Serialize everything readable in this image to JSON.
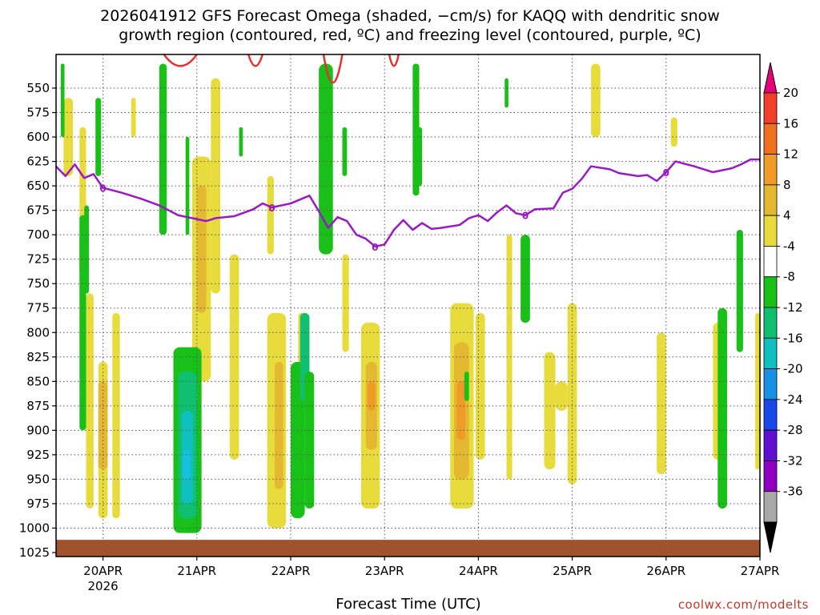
{
  "title": {
    "line1": "2026041912 GFS Forecast Omega (shaded, −cm/s) for KAQQ with dendritic snow",
    "line2": "growth region (contoured, red, ºC) and freezing level (contoured, purple, ºC)"
  },
  "xlabel": "Forecast Time (UTC)",
  "credit": "coolwx.com/modelts",
  "chart_data": {
    "type": "heatmap",
    "y_axis": {
      "ticks": [
        550,
        575,
        600,
        625,
        650,
        675,
        700,
        725,
        750,
        775,
        800,
        825,
        850,
        875,
        900,
        925,
        950,
        975,
        1000,
        1025
      ],
      "range_top": 525,
      "range_bottom": 1035
    },
    "x_axis": {
      "ticks": [
        "20APR",
        "21APR",
        "22APR",
        "23APR",
        "24APR",
        "25APR",
        "26APR",
        "27APR"
      ],
      "sub_label": "2026",
      "range_days": [
        -0.5,
        7.0
      ]
    },
    "colorbar": {
      "labels": [
        20,
        16,
        12,
        8,
        4,
        -4,
        -8,
        -12,
        -16,
        -20,
        -24,
        -28,
        -32,
        -36
      ],
      "colors": [
        "#e8007a",
        "#f0402a",
        "#f07020",
        "#f09a28",
        "#e4b830",
        "#e8dc3c",
        "#ffffff",
        "#18c018",
        "#10c070",
        "#10c0c0",
        "#1890e8",
        "#1848e8",
        "#6010d0",
        "#9000c0",
        "#a8a8a8",
        "#000000"
      ]
    },
    "freezing_level": {
      "label": "0",
      "points": [
        [
          -0.5,
          630
        ],
        [
          -0.4,
          640
        ],
        [
          -0.3,
          628
        ],
        [
          -0.2,
          642
        ],
        [
          -0.1,
          638
        ],
        [
          0.0,
          652
        ],
        [
          0.2,
          657
        ],
        [
          0.4,
          663
        ],
        [
          0.6,
          670
        ],
        [
          0.8,
          680
        ],
        [
          1.0,
          684
        ],
        [
          1.1,
          686
        ],
        [
          1.2,
          683
        ],
        [
          1.4,
          681
        ],
        [
          1.6,
          674
        ],
        [
          1.7,
          668
        ],
        [
          1.8,
          672
        ],
        [
          2.0,
          668
        ],
        [
          2.2,
          660
        ],
        [
          2.3,
          676
        ],
        [
          2.4,
          693
        ],
        [
          2.5,
          682
        ],
        [
          2.6,
          686
        ],
        [
          2.7,
          700
        ],
        [
          2.8,
          704
        ],
        [
          2.9,
          712
        ],
        [
          3.0,
          710
        ],
        [
          3.1,
          695
        ],
        [
          3.2,
          685
        ],
        [
          3.3,
          695
        ],
        [
          3.4,
          688
        ],
        [
          3.5,
          694
        ],
        [
          3.6,
          693
        ],
        [
          3.8,
          690
        ],
        [
          3.9,
          683
        ],
        [
          4.0,
          680
        ],
        [
          4.1,
          686
        ],
        [
          4.2,
          677
        ],
        [
          4.3,
          670
        ],
        [
          4.4,
          678
        ],
        [
          4.5,
          680
        ],
        [
          4.6,
          674
        ],
        [
          4.8,
          673
        ],
        [
          4.9,
          657
        ],
        [
          5.0,
          653
        ],
        [
          5.1,
          643
        ],
        [
          5.2,
          630
        ],
        [
          5.4,
          633
        ],
        [
          5.5,
          637
        ],
        [
          5.7,
          640
        ],
        [
          5.8,
          639
        ],
        [
          5.9,
          645
        ],
        [
          6.0,
          636
        ],
        [
          6.1,
          625
        ],
        [
          6.3,
          630
        ],
        [
          6.5,
          636
        ],
        [
          6.7,
          632
        ],
        [
          6.8,
          628
        ],
        [
          6.9,
          623
        ],
        [
          7.0,
          623
        ]
      ]
    },
    "dgz_contour_top": [
      [
        0.65,
        1.0,
        531
      ],
      [
        1.55,
        1.7,
        531
      ],
      [
        2.35,
        2.55,
        565
      ],
      [
        3.05,
        3.15,
        531
      ]
    ],
    "soil_top": 1012,
    "shaded_regions": [
      {
        "x0": -0.42,
        "x1": -0.32,
        "p0": 560,
        "p1": 640,
        "color": "#e8dc3c"
      },
      {
        "x0": -0.25,
        "x1": -0.18,
        "p0": 590,
        "p1": 820,
        "color": "#e8dc3c"
      },
      {
        "x0": -0.18,
        "x1": -0.1,
        "p0": 760,
        "p1": 980,
        "color": "#e8dc3c"
      },
      {
        "x0": -0.05,
        "x1": 0.05,
        "p0": 830,
        "p1": 990,
        "color": "#e8dc3c"
      },
      {
        "x0": -0.05,
        "x1": 0.05,
        "p0": 850,
        "p1": 940,
        "color": "#e4b830"
      },
      {
        "x0": 0.1,
        "x1": 0.18,
        "p0": 780,
        "p1": 990,
        "color": "#e8dc3c"
      },
      {
        "x0": 0.3,
        "x1": 0.35,
        "p0": 560,
        "p1": 600,
        "color": "#e8dc3c"
      },
      {
        "x0": 0.95,
        "x1": 1.15,
        "p0": 620,
        "p1": 850,
        "color": "#e8dc3c"
      },
      {
        "x0": 1.0,
        "x1": 1.1,
        "p0": 650,
        "p1": 780,
        "color": "#e4b830"
      },
      {
        "x0": 1.15,
        "x1": 1.25,
        "p0": 540,
        "p1": 760,
        "color": "#e8dc3c"
      },
      {
        "x0": 1.35,
        "x1": 1.45,
        "p0": 720,
        "p1": 930,
        "color": "#e8dc3c"
      },
      {
        "x0": 1.75,
        "x1": 1.82,
        "p0": 640,
        "p1": 720,
        "color": "#e8dc3c"
      },
      {
        "x0": 1.75,
        "x1": 1.95,
        "p0": 780,
        "p1": 1000,
        "color": "#e8dc3c"
      },
      {
        "x0": 1.83,
        "x1": 1.92,
        "p0": 830,
        "p1": 960,
        "color": "#e4b830"
      },
      {
        "x0": 2.08,
        "x1": 2.15,
        "p0": 780,
        "p1": 860,
        "color": "#e8dc3c"
      },
      {
        "x0": 2.55,
        "x1": 2.62,
        "p0": 720,
        "p1": 820,
        "color": "#e8dc3c"
      },
      {
        "x0": 2.75,
        "x1": 2.95,
        "p0": 790,
        "p1": 980,
        "color": "#e8dc3c"
      },
      {
        "x0": 2.8,
        "x1": 2.92,
        "p0": 830,
        "p1": 920,
        "color": "#e4b830"
      },
      {
        "x0": 2.82,
        "x1": 2.9,
        "p0": 850,
        "p1": 880,
        "color": "#f09a28"
      },
      {
        "x0": 3.7,
        "x1": 3.95,
        "p0": 770,
        "p1": 980,
        "color": "#e8dc3c"
      },
      {
        "x0": 3.74,
        "x1": 3.9,
        "p0": 810,
        "p1": 950,
        "color": "#e4b830"
      },
      {
        "x0": 3.77,
        "x1": 3.86,
        "p0": 850,
        "p1": 910,
        "color": "#f09a28"
      },
      {
        "x0": 3.97,
        "x1": 4.07,
        "p0": 780,
        "p1": 930,
        "color": "#e8dc3c"
      },
      {
        "x0": 4.3,
        "x1": 4.36,
        "p0": 700,
        "p1": 950,
        "color": "#e8dc3c"
      },
      {
        "x0": 4.7,
        "x1": 4.82,
        "p0": 820,
        "p1": 940,
        "color": "#e8dc3c"
      },
      {
        "x0": 4.95,
        "x1": 5.05,
        "p0": 770,
        "p1": 955,
        "color": "#e8dc3c"
      },
      {
        "x0": 4.82,
        "x1": 4.95,
        "p0": 850,
        "p1": 880,
        "color": "#e8dc3c"
      },
      {
        "x0": 5.2,
        "x1": 5.3,
        "p0": 525,
        "p1": 600,
        "color": "#e8dc3c"
      },
      {
        "x0": 5.9,
        "x1": 6.0,
        "p0": 800,
        "p1": 945,
        "color": "#e8dc3c"
      },
      {
        "x0": 6.05,
        "x1": 6.12,
        "p0": 580,
        "p1": 610,
        "color": "#e8dc3c"
      },
      {
        "x0": 6.5,
        "x1": 6.6,
        "p0": 790,
        "p1": 930,
        "color": "#e8dc3c"
      },
      {
        "x0": 6.95,
        "x1": 7.0,
        "p0": 780,
        "p1": 940,
        "color": "#e8dc3c"
      },
      {
        "x0": -0.45,
        "x1": -0.41,
        "p0": 525,
        "p1": 600,
        "color": "#18c018"
      },
      {
        "x0": -0.2,
        "x1": -0.15,
        "p0": 670,
        "p1": 760,
        "color": "#18c018"
      },
      {
        "x0": -0.25,
        "x1": -0.2,
        "p0": 700,
        "p1": 740,
        "color": "#18c018"
      },
      {
        "x0": -0.08,
        "x1": -0.02,
        "p0": 560,
        "p1": 640,
        "color": "#18c018"
      },
      {
        "x0": -0.25,
        "x1": -0.18,
        "p0": 680,
        "p1": 900,
        "color": "#18c018"
      },
      {
        "x0": 0.6,
        "x1": 0.68,
        "p0": 525,
        "p1": 700,
        "color": "#18c018"
      },
      {
        "x0": 0.75,
        "x1": 1.05,
        "p0": 815,
        "p1": 1005,
        "color": "#18c018"
      },
      {
        "x0": 0.8,
        "x1": 1.0,
        "p0": 840,
        "p1": 990,
        "color": "#10c070"
      },
      {
        "x0": 0.84,
        "x1": 0.96,
        "p0": 880,
        "p1": 975,
        "color": "#10c0c0"
      },
      {
        "x0": 0.85,
        "x1": 0.93,
        "p0": 920,
        "p1": 950,
        "color": "#18c0e0"
      },
      {
        "x0": 0.88,
        "x1": 0.92,
        "p0": 600,
        "p1": 700,
        "color": "#18c018"
      },
      {
        "x0": 1.45,
        "x1": 1.49,
        "p0": 590,
        "p1": 620,
        "color": "#18c018"
      },
      {
        "x0": 2.0,
        "x1": 2.15,
        "p0": 830,
        "p1": 990,
        "color": "#18c018"
      },
      {
        "x0": 2.1,
        "x1": 2.2,
        "p0": 780,
        "p1": 870,
        "color": "#10c070"
      },
      {
        "x0": 2.15,
        "x1": 2.25,
        "p0": 840,
        "p1": 980,
        "color": "#18c018"
      },
      {
        "x0": 2.3,
        "x1": 2.45,
        "p0": 525,
        "p1": 720,
        "color": "#18c018"
      },
      {
        "x0": 2.55,
        "x1": 2.6,
        "p0": 590,
        "p1": 640,
        "color": "#18c018"
      },
      {
        "x0": 3.3,
        "x1": 3.37,
        "p0": 525,
        "p1": 660,
        "color": "#18c018"
      },
      {
        "x0": 3.35,
        "x1": 3.4,
        "p0": 590,
        "p1": 650,
        "color": "#18c018"
      },
      {
        "x0": 3.85,
        "x1": 3.9,
        "p0": 840,
        "p1": 870,
        "color": "#18c018"
      },
      {
        "x0": 4.28,
        "x1": 4.32,
        "p0": 540,
        "p1": 570,
        "color": "#18c018"
      },
      {
        "x0": 4.45,
        "x1": 4.55,
        "p0": 700,
        "p1": 790,
        "color": "#18c018"
      },
      {
        "x0": 6.55,
        "x1": 6.65,
        "p0": 775,
        "p1": 980,
        "color": "#18c018"
      },
      {
        "x0": 6.75,
        "x1": 6.82,
        "p0": 695,
        "p1": 820,
        "color": "#18c018"
      }
    ]
  }
}
